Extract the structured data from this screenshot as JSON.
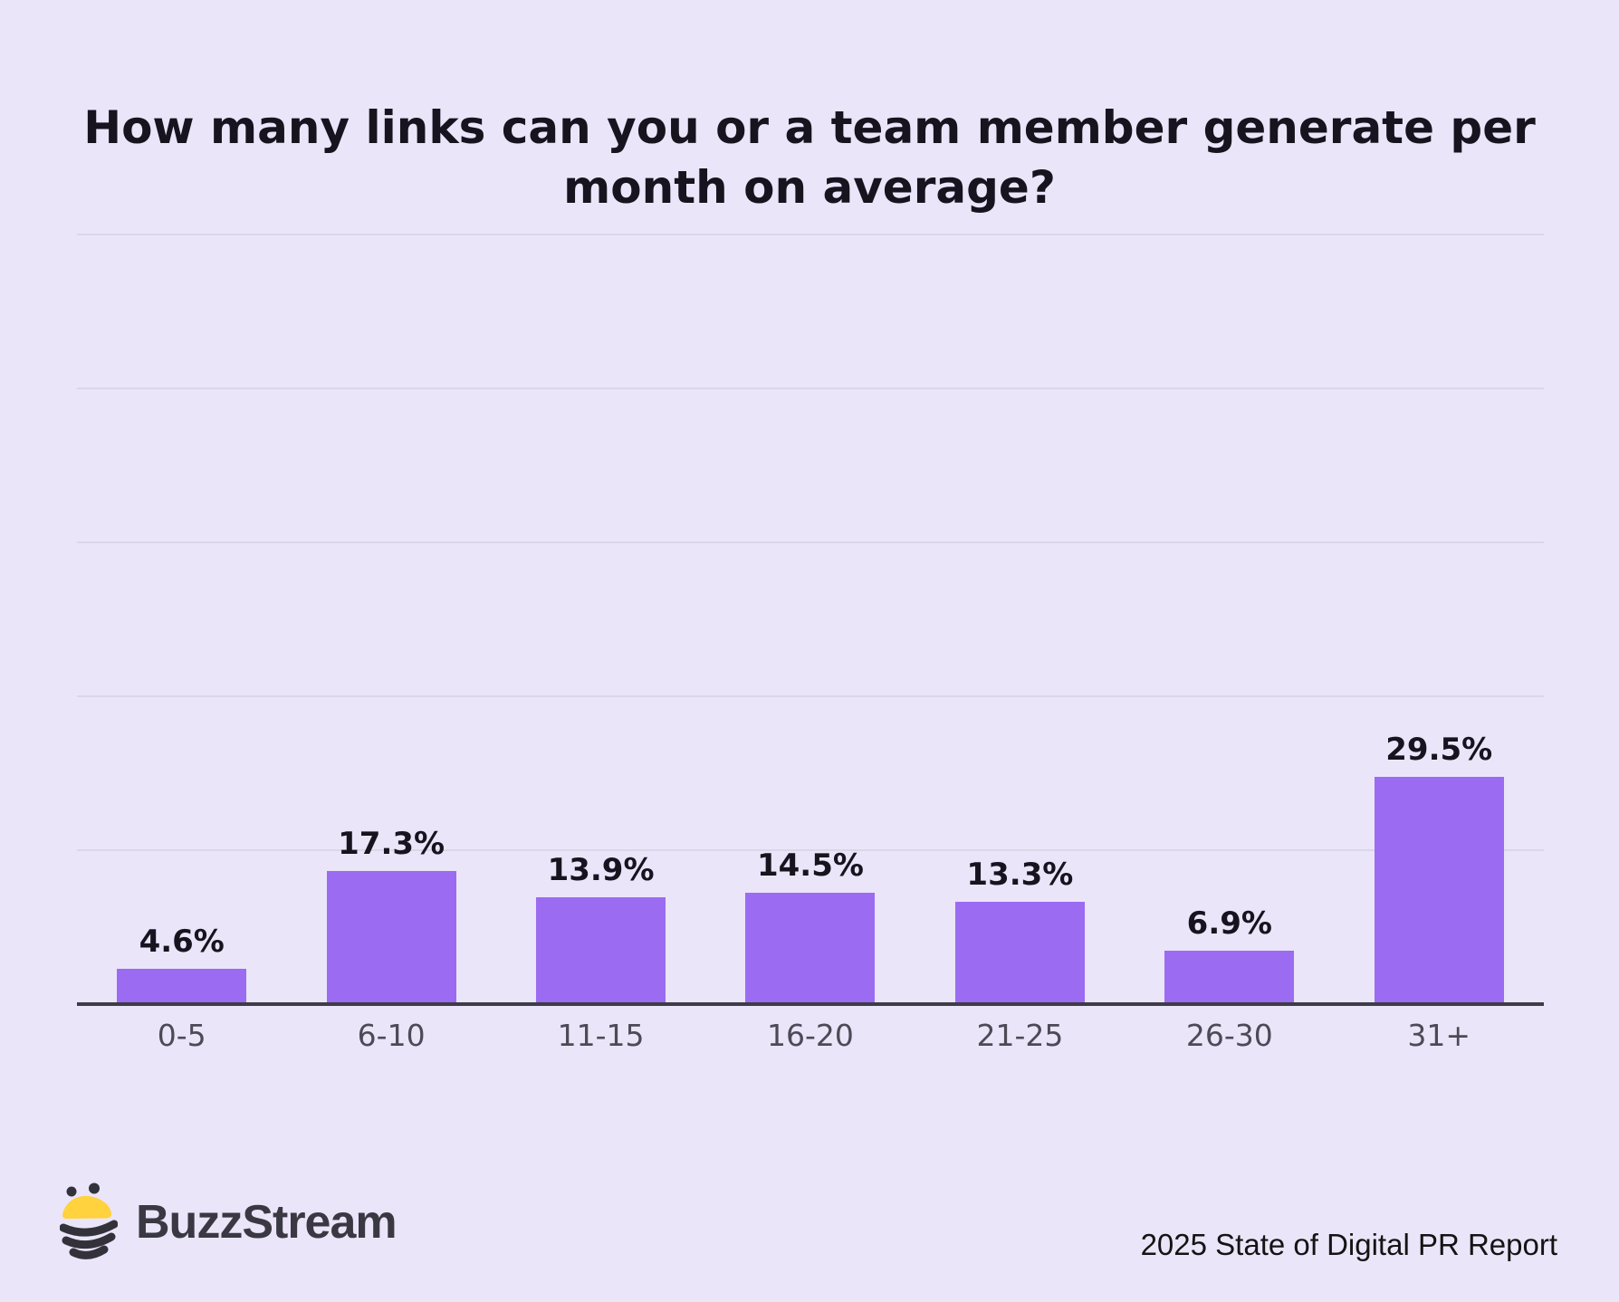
{
  "page": {
    "background": "#EBE5F9"
  },
  "title_lines": [
    "How many links can you or a team member generate per",
    "month on average?"
  ],
  "chart_data": {
    "type": "bar",
    "title": "How many links can you or a team member generate per month on average?",
    "categories": [
      "0-5",
      "6-10",
      "11-15",
      "16-20",
      "21-25",
      "26-30",
      "31+"
    ],
    "values": [
      4.6,
      17.3,
      13.9,
      14.5,
      13.3,
      6.9,
      29.5
    ],
    "value_labels": [
      "4.6%",
      "17.3%",
      "13.9%",
      "14.5%",
      "13.3%",
      "6.9%",
      "29.5%"
    ],
    "xlabel": "",
    "ylabel": "",
    "ylim": [
      0,
      100
    ],
    "gridline_interval": 20,
    "grid": "horizontal-only",
    "legend": "none",
    "bar_color": "#9B6CF1",
    "gridline_color": "#DCD6E9",
    "axis_line_color": "#3E3C46",
    "label_color": "#17141F",
    "category_label_color": "#4D4A57",
    "background_color": "#EBE5F9"
  },
  "footer": {
    "brand": "BuzzStream",
    "report": "2025 State of Digital PR Report",
    "bee_yellow": "#FFD23E",
    "bee_dark": "#33323B"
  }
}
